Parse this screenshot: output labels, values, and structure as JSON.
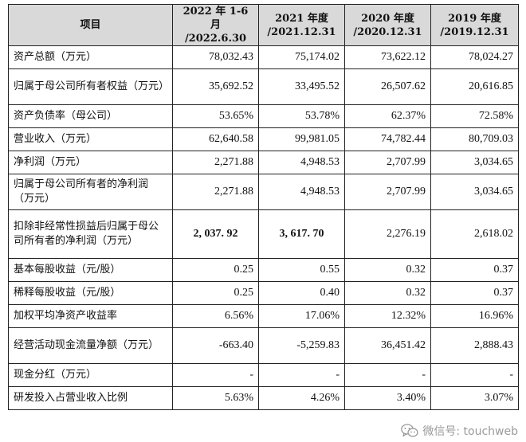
{
  "table": {
    "headers": [
      [
        "项目"
      ],
      [
        "2022 年 1-6 月",
        "/2022.6.30"
      ],
      [
        "2021 年度",
        "/2021.12.31"
      ],
      [
        "2020 年度",
        "/2020.12.31"
      ],
      [
        "2019 年度",
        "/2019.12.31"
      ]
    ],
    "rows": [
      {
        "label": "资产总额（万元）",
        "values": [
          "78,032.43",
          "75,174.02",
          "73,622.12",
          "78,024.27"
        ]
      },
      {
        "label": "归属于母公司所有者权益（万元）",
        "values": [
          "35,692.52",
          "33,495.52",
          "26,507.62",
          "20,616.85"
        ]
      },
      {
        "label": "资产负债率（母公司）",
        "values": [
          "53.65%",
          "53.78%",
          "62.37%",
          "72.58%"
        ]
      },
      {
        "label": "营业收入（万元）",
        "values": [
          "62,640.58",
          "99,981.05",
          "74,782.44",
          "80,709.03"
        ]
      },
      {
        "label": "净利润（万元）",
        "values": [
          "2,271.88",
          "4,948.53",
          "2,707.99",
          "3,034.65"
        ]
      },
      {
        "label": "归属于母公司所有者的净利润（万元）",
        "values": [
          "2,271.88",
          "4,948.53",
          "2,707.99",
          "3,034.65"
        ]
      },
      {
        "label": "扣除非经常性损益后归属于母公司所有者的净利润（万元）",
        "values": [
          "2, 037. 92",
          "3, 617. 70",
          "2,276.19",
          "2,618.02"
        ]
      },
      {
        "label": "基本每股收益（元/股）",
        "values": [
          "0.25",
          "0.55",
          "0.32",
          "0.37"
        ]
      },
      {
        "label": "稀释每股收益（元/股）",
        "values": [
          "0.25",
          "0.40",
          "0.32",
          "0.37"
        ]
      },
      {
        "label": "加权平均净资产收益率",
        "values": [
          "6.56%",
          "17.06%",
          "12.32%",
          "16.96%"
        ]
      },
      {
        "label": "经营活动现金流量净额（万元）",
        "values": [
          "-663.40",
          "-5,259.83",
          "36,451.42",
          "2,888.43"
        ]
      },
      {
        "label": "现金分红（万元）",
        "values": [
          "-",
          "-",
          "-",
          "-"
        ]
      },
      {
        "label": "研发投入占营业收入比例",
        "values": [
          "5.63%",
          "4.26%",
          "3.40%",
          "3.07%"
        ]
      }
    ]
  },
  "watermark": {
    "icon": "wechat-icon",
    "text": "微信号: touchweb"
  },
  "colors": {
    "header_bg": "#d9d9d9",
    "border": "#222222",
    "watermark": "#9a9a9a"
  }
}
